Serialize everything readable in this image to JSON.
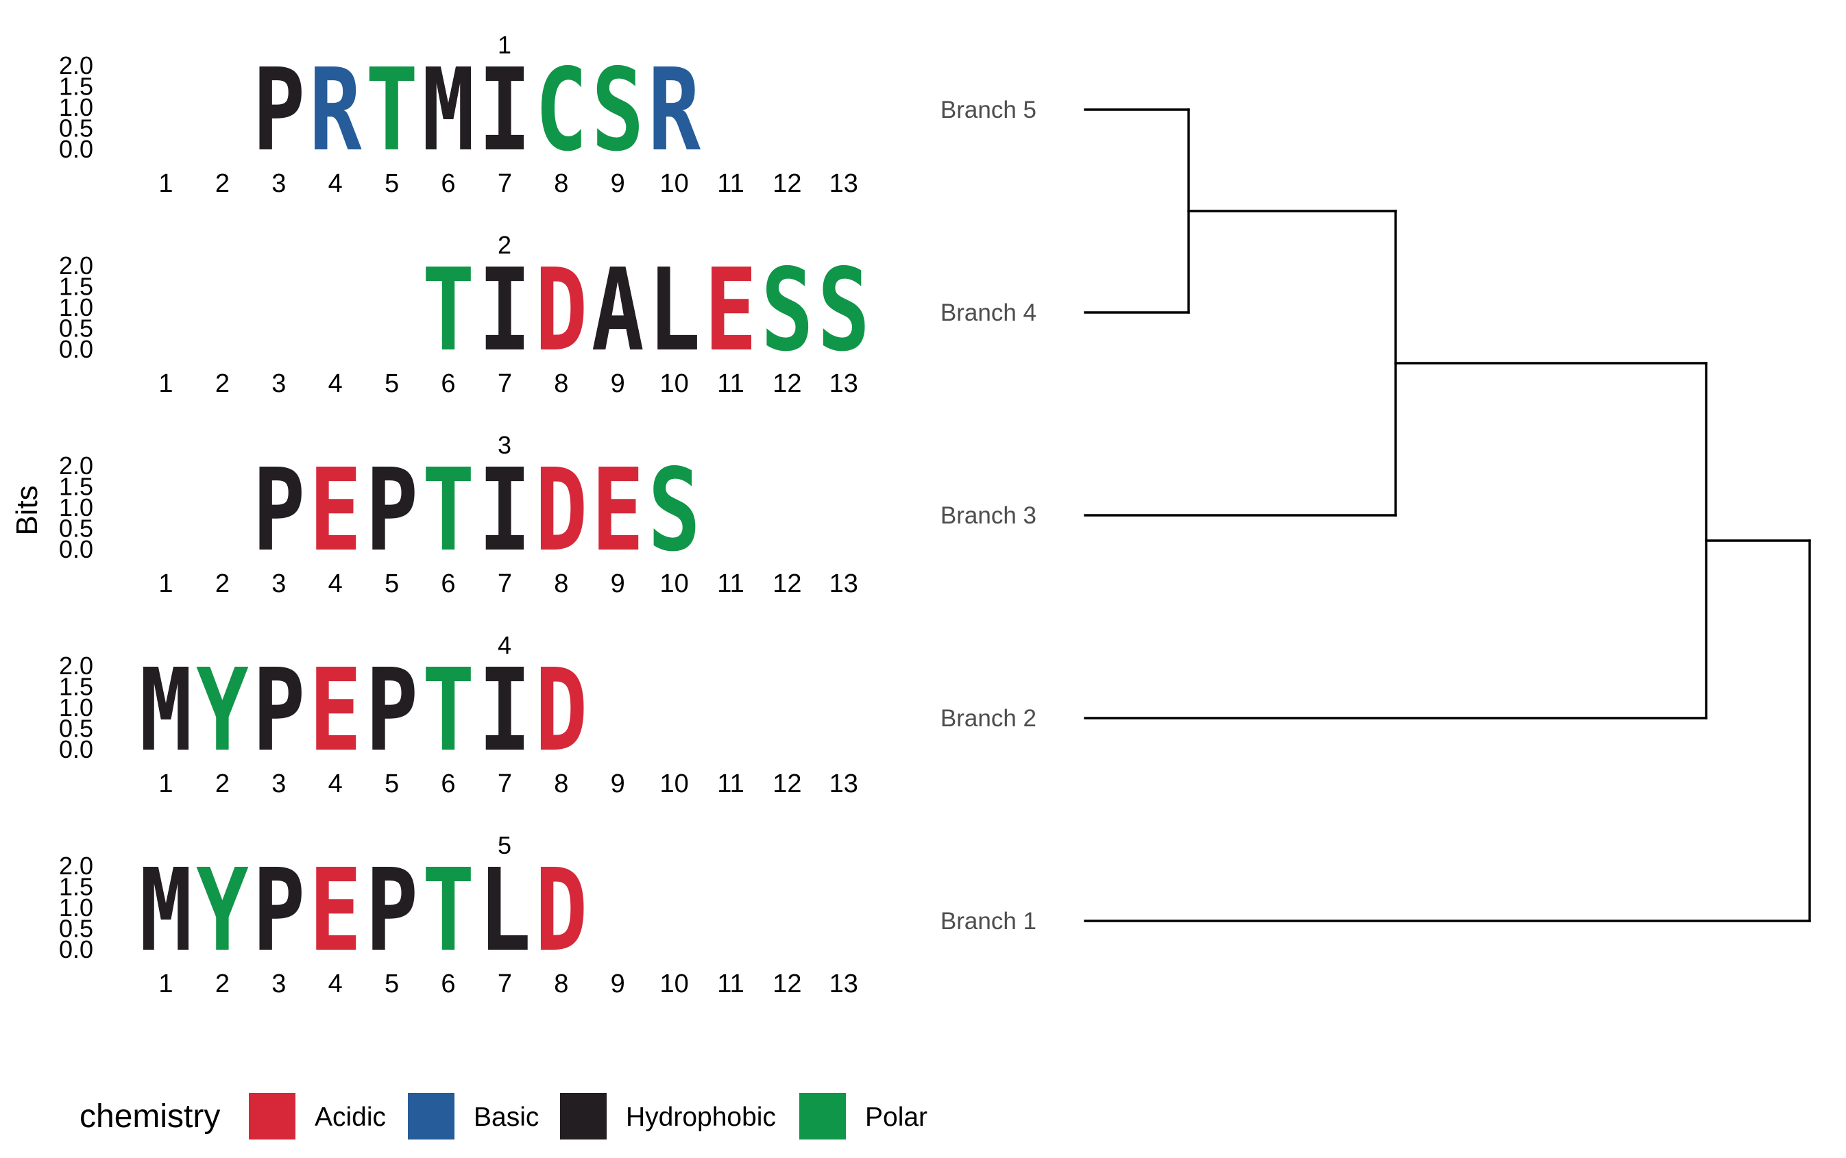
{
  "chart_data": {
    "type": "sequence-logo-with-dendrogram",
    "ylabel": "Bits",
    "ylim": [
      0,
      2
    ],
    "y_ticks": [
      "2.0",
      "1.5",
      "1.0",
      "0.5",
      "0.0"
    ],
    "x_positions": [
      "1",
      "2",
      "3",
      "4",
      "5",
      "6",
      "7",
      "8",
      "9",
      "10",
      "11",
      "12",
      "13"
    ],
    "logos": [
      {
        "title": "1",
        "start_position": 3,
        "sequence": "PRTMICSR"
      },
      {
        "title": "2",
        "start_position": 6,
        "sequence": "TIDALESS"
      },
      {
        "title": "3",
        "start_position": 3,
        "sequence": "PEPTIDES"
      },
      {
        "title": "4",
        "start_position": 1,
        "sequence": "MYPEPTID"
      },
      {
        "title": "5",
        "start_position": 1,
        "sequence": "MYPEPTLD"
      }
    ],
    "letter_bits": 2.0,
    "legend": {
      "title": "chemistry",
      "placement": "bottom",
      "items": [
        {
          "label": "Acidic",
          "color": "#d62839"
        },
        {
          "label": "Basic",
          "color": "#255c99"
        },
        {
          "label": "Hydrophobic",
          "color": "#221e22"
        },
        {
          "label": "Polar",
          "color": "#109648"
        }
      ]
    },
    "chemistry": {
      "Acidic": [
        "D",
        "E"
      ],
      "Basic": [
        "H",
        "K",
        "R"
      ],
      "Hydrophobic": [
        "A",
        "F",
        "I",
        "L",
        "M",
        "P",
        "V",
        "W"
      ],
      "Polar": [
        "C",
        "G",
        "N",
        "Q",
        "S",
        "T",
        "Y"
      ]
    },
    "dendrogram": {
      "leaves": [
        "Branch 5",
        "Branch 4",
        "Branch 3",
        "Branch 2",
        "Branch 1"
      ],
      "merges": [
        {
          "children": [
            "Branch 5",
            "Branch 4"
          ],
          "height": 1
        },
        {
          "children": [
            "Branch 5|Branch 4",
            "Branch 3"
          ],
          "height": 3
        },
        {
          "children": [
            "Branch 5|Branch 4|Branch 3",
            "Branch 2"
          ],
          "height": 6
        },
        {
          "children": [
            "Branch 5|Branch 4|Branch 3|Branch 2",
            "Branch 1"
          ],
          "height": 7
        }
      ]
    }
  }
}
